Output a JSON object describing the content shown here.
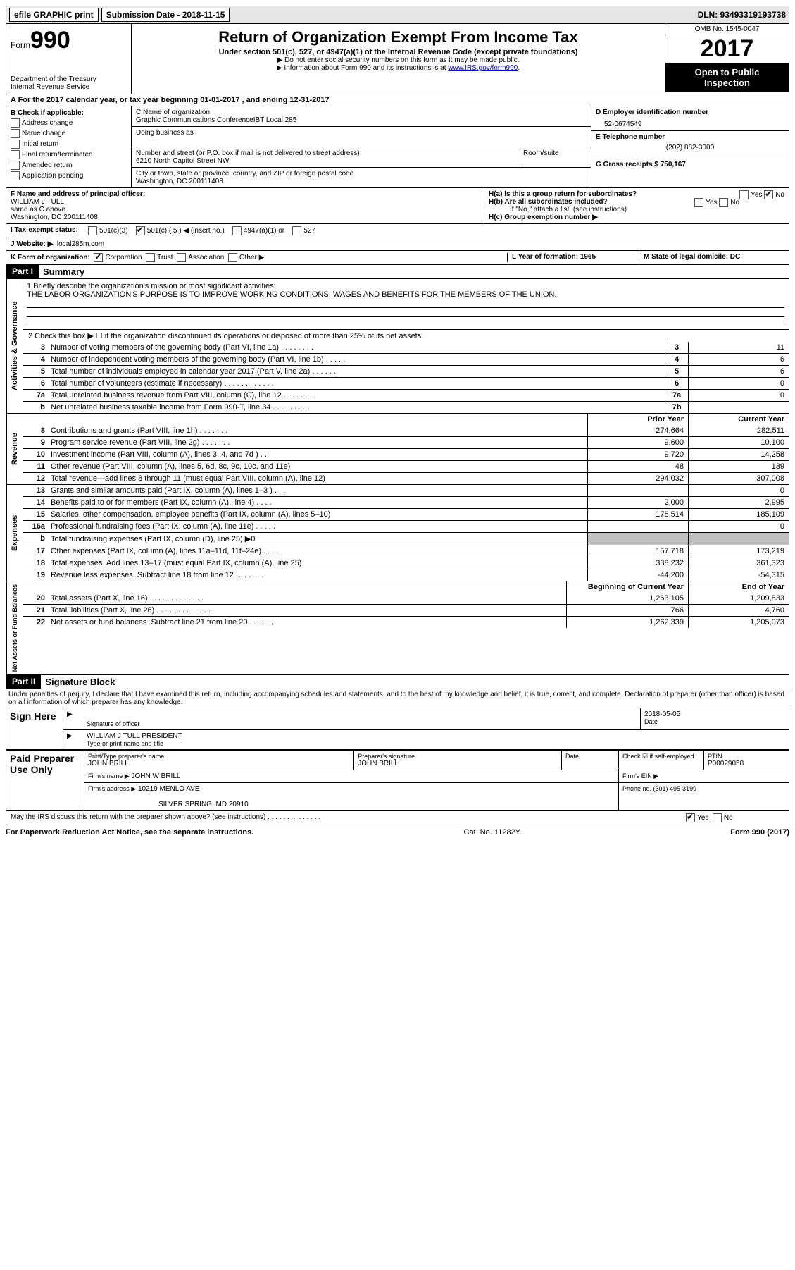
{
  "top": {
    "efile": "efile GRAPHIC print",
    "submission": "Submission Date - 2018-11-15",
    "dln": "DLN: 93493319193738"
  },
  "header": {
    "form_label": "Form",
    "form_no": "990",
    "dept": "Department of the Treasury",
    "irs": "Internal Revenue Service",
    "title": "Return of Organization Exempt From Income Tax",
    "subtitle": "Under section 501(c), 527, or 4947(a)(1) of the Internal Revenue Code (except private foundations)",
    "note1": "▶ Do not enter social security numbers on this form as it may be made public.",
    "note2_prefix": "▶ Information about Form 990 and its instructions is at ",
    "note2_link": "www.IRS.gov/form990",
    "omb": "OMB No. 1545-0047",
    "year": "2017",
    "inspect1": "Open to Public",
    "inspect2": "Inspection"
  },
  "rowA": "A  For the 2017 calendar year, or tax year beginning 01-01-2017   , and ending 12-31-2017",
  "B": {
    "title": "B Check if applicable:",
    "items": [
      "Address change",
      "Name change",
      "Initial return",
      "Final return/terminated",
      "Amended return",
      "Application pending"
    ]
  },
  "C": {
    "label_name": "C Name of organization",
    "name": "Graphic Communications ConferenceIBT Local 285",
    "dba_label": "Doing business as",
    "addr_label": "Number and street (or P.O. box if mail is not delivered to street address)",
    "room_label": "Room/suite",
    "addr": "6210 North Capitol Street NW",
    "city_label": "City or town, state or province, country, and ZIP or foreign postal code",
    "city": "Washington, DC  200111408"
  },
  "D": {
    "label": "D Employer identification number",
    "val": "52-0674549"
  },
  "E": {
    "label": "E Telephone number",
    "val": "(202) 882-3000"
  },
  "G": {
    "label": "G Gross receipts $ 750,167"
  },
  "F": {
    "label": "F  Name and address of principal officer:",
    "name": "WILLIAM J TULL",
    "same": "same as C above",
    "city": "Washington, DC  200111408"
  },
  "H": {
    "a": "H(a)  Is this a group return for subordinates?",
    "b": "H(b)  Are all subordinates included?",
    "b_note": "If \"No,\" attach a list. (see instructions)",
    "c": "H(c)  Group exemption number ▶",
    "yes": "Yes",
    "no": "No"
  },
  "I": {
    "label": "I  Tax-exempt status:",
    "opts": [
      "501(c)(3)",
      "501(c) ( 5 ) ◀ (insert no.)",
      "4947(a)(1) or",
      "527"
    ]
  },
  "J": {
    "label": "J  Website: ▶",
    "val": "local285m.com"
  },
  "K": {
    "label": "K Form of organization:",
    "opts": [
      "Corporation",
      "Trust",
      "Association",
      "Other ▶"
    ]
  },
  "L": "L Year of formation: 1965",
  "M": "M State of legal domicile: DC",
  "part1": {
    "tag": "Part I",
    "title": "Summary"
  },
  "mission_label": "1 Briefly describe the organization's mission or most significant activities:",
  "mission": "THE LABOR ORGANIZATION'S PURPOSE IS TO IMPROVE WORKING CONDITIONS, WAGES AND BENEFITS FOR THE MEMBERS OF THE UNION.",
  "line2": "2   Check this box ▶ ☐  if the organization discontinued its operations or disposed of more than 25% of its net assets.",
  "gov_lines": [
    {
      "n": "3",
      "d": "Number of voting members of the governing body (Part VI, line 1a)  .   .   .   .   .   .   .   .",
      "b": "3",
      "v": "11"
    },
    {
      "n": "4",
      "d": "Number of independent voting members of the governing body (Part VI, line 1b)   .   .   .   .   .",
      "b": "4",
      "v": "6"
    },
    {
      "n": "5",
      "d": "Total number of individuals employed in calendar year 2017 (Part V, line 2a)   .   .   .   .   .   .",
      "b": "5",
      "v": "6"
    },
    {
      "n": "6",
      "d": "Total number of volunteers (estimate if necessary)   .   .   .   .   .   .   .   .   .   .   .   .",
      "b": "6",
      "v": "0"
    },
    {
      "n": "7a",
      "d": "Total unrelated business revenue from Part VIII, column (C), line 12   .   .   .   .   .   .   .   .",
      "b": "7a",
      "v": "0"
    },
    {
      "n": "b",
      "d": "Net unrelated business taxable income from Form 990-T, line 34   .   .   .   .   .   .   .   .   .",
      "b": "7b",
      "v": ""
    }
  ],
  "col_headers": {
    "prior": "Prior Year",
    "curr": "Current Year"
  },
  "revenue": [
    {
      "n": "8",
      "d": "Contributions and grants (Part VIII, line 1h)   .   .   .   .   .   .   .",
      "p": "274,664",
      "c": "282,511"
    },
    {
      "n": "9",
      "d": "Program service revenue (Part VIII, line 2g)   .   .   .   .   .   .   .",
      "p": "9,600",
      "c": "10,100"
    },
    {
      "n": "10",
      "d": "Investment income (Part VIII, column (A), lines 3, 4, and 7d )   .   .   .",
      "p": "9,720",
      "c": "14,258"
    },
    {
      "n": "11",
      "d": "Other revenue (Part VIII, column (A), lines 5, 6d, 8c, 9c, 10c, and 11e)",
      "p": "48",
      "c": "139"
    },
    {
      "n": "12",
      "d": "Total revenue—add lines 8 through 11 (must equal Part VIII, column (A), line 12)",
      "p": "294,032",
      "c": "307,008"
    }
  ],
  "expenses": [
    {
      "n": "13",
      "d": "Grants and similar amounts paid (Part IX, column (A), lines 1–3 )   .   .   .",
      "p": "",
      "c": "0"
    },
    {
      "n": "14",
      "d": "Benefits paid to or for members (Part IX, column (A), line 4)   .   .   .   .",
      "p": "2,000",
      "c": "2,995"
    },
    {
      "n": "15",
      "d": "Salaries, other compensation, employee benefits (Part IX, column (A), lines 5–10)",
      "p": "178,514",
      "c": "185,109"
    },
    {
      "n": "16a",
      "d": "Professional fundraising fees (Part IX, column (A), line 11e)   .   .   .   .   .",
      "p": "",
      "c": "0"
    },
    {
      "n": "b",
      "d": "Total fundraising expenses (Part IX, column (D), line 25) ▶0",
      "p": "shaded",
      "c": "shaded"
    },
    {
      "n": "17",
      "d": "Other expenses (Part IX, column (A), lines 11a–11d, 11f–24e)   .   .   .   .",
      "p": "157,718",
      "c": "173,219"
    },
    {
      "n": "18",
      "d": "Total expenses. Add lines 13–17 (must equal Part IX, column (A), line 25)",
      "p": "338,232",
      "c": "361,323"
    },
    {
      "n": "19",
      "d": "Revenue less expenses. Subtract line 18 from line 12 .   .   .   .   .   .   .",
      "p": "-44,200",
      "c": "-54,315"
    }
  ],
  "net_headers": {
    "beg": "Beginning of Current Year",
    "end": "End of Year"
  },
  "net": [
    {
      "n": "20",
      "d": "Total assets (Part X, line 16)  .   .   .   .   .   .   .   .   .   .   .   .   .",
      "p": "1,263,105",
      "c": "1,209,833"
    },
    {
      "n": "21",
      "d": "Total liabilities (Part X, line 26) .   .   .   .   .   .   .   .   .   .   .   .   .",
      "p": "766",
      "c": "4,760"
    },
    {
      "n": "22",
      "d": "Net assets or fund balances. Subtract line 21 from line 20  .   .   .   .   .   .",
      "p": "1,262,339",
      "c": "1,205,073"
    }
  ],
  "part2": {
    "tag": "Part II",
    "title": "Signature Block"
  },
  "penalties": "Under penalties of perjury, I declare that I have examined this return, including accompanying schedules and statements, and to the best of my knowledge and belief, it is true, correct, and complete. Declaration of preparer (other than officer) is based on all information of which preparer has any knowledge.",
  "sign": {
    "here": "Sign Here",
    "sig_officer": "Signature of officer",
    "date": "Date",
    "date_val": "2018-05-05",
    "name": "WILLIAM J TULL  PRESIDENT",
    "type_name": "Type or print name and title"
  },
  "paid": {
    "label": "Paid Preparer Use Only",
    "prep_name_lbl": "Print/Type preparer's name",
    "prep_name": "JOHN BRILL",
    "prep_sig_lbl": "Preparer's signature",
    "prep_sig": "JOHN BRILL",
    "date_lbl": "Date",
    "check_lbl": "Check ☑ if self-employed",
    "ptin_lbl": "PTIN",
    "ptin": "P00029058",
    "firm_name_lbl": "Firm's name      ▶",
    "firm_name": "JOHN W BRILL",
    "firm_ein_lbl": "Firm's EIN ▶",
    "firm_addr_lbl": "Firm's address ▶",
    "firm_addr1": "10219 MENLO AVE",
    "firm_addr2": "SILVER SPRING, MD   20910",
    "phone_lbl": "Phone no. (301) 495-3199"
  },
  "discuss": "May the IRS discuss this return with the preparer shown above? (see instructions)   .   .   .   .   .   .   .   .   .   .   .   .   .   .",
  "footer": {
    "left": "For Paperwork Reduction Act Notice, see the separate instructions.",
    "mid": "Cat. No. 11282Y",
    "right": "Form 990 (2017)"
  },
  "vlabels": {
    "gov": "Activities & Governance",
    "rev": "Revenue",
    "exp": "Expenses",
    "net": "Net Assets or Fund Balances"
  }
}
